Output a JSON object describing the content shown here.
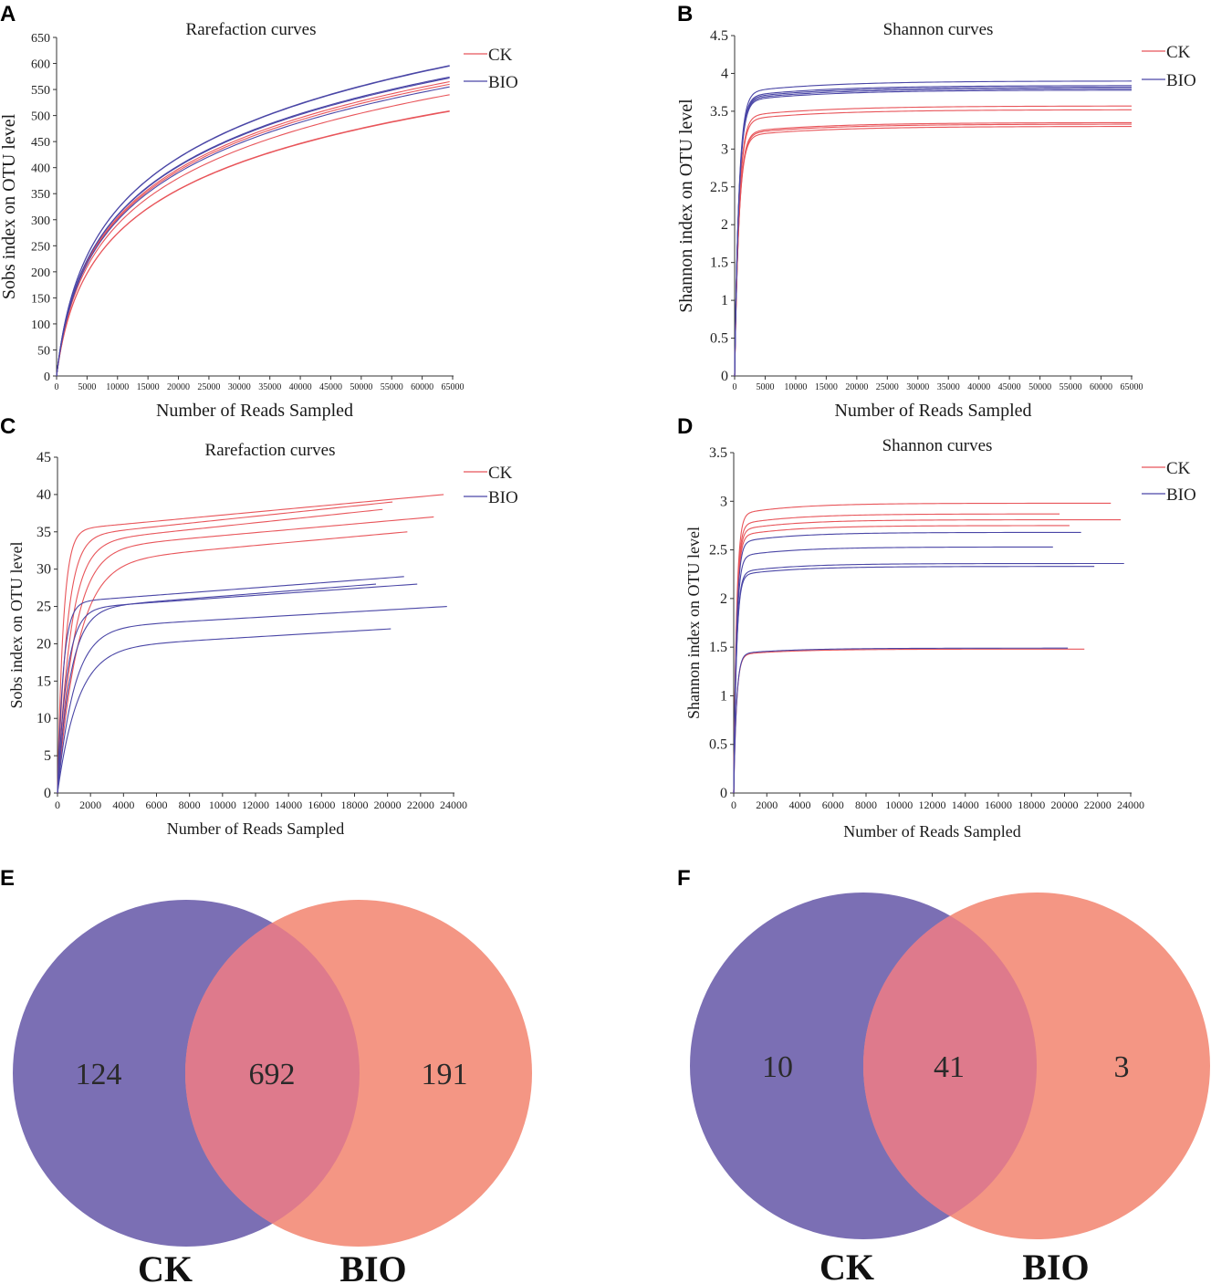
{
  "colors": {
    "ck": "#e8555a",
    "bio": "#4a46a6",
    "venn_ck": "#7b6fb4",
    "venn_bio": "#f49684",
    "venn_overlap": "#de7a8c"
  },
  "panels": {
    "A": {
      "letter": "A"
    },
    "B": {
      "letter": "B"
    },
    "C": {
      "letter": "C"
    },
    "D": {
      "letter": "D"
    },
    "E": {
      "letter": "E"
    },
    "F": {
      "letter": "F"
    }
  },
  "chart_data": [
    {
      "panel": "A",
      "type": "line",
      "title": "Rarefaction curves",
      "xlabel": "Number of Reads Sampled",
      "ylabel": "Sobs index on OTU level",
      "xlim": [
        0,
        65000
      ],
      "ylim": [
        0,
        650
      ],
      "xticks": [
        "0",
        "5000",
        "10000",
        "15000",
        "20000",
        "25000",
        "30000",
        "35000",
        "40000",
        "45000",
        "50000",
        "55000",
        "60000",
        "65000"
      ],
      "yticks": [
        "0",
        "50",
        "100",
        "150",
        "200",
        "250",
        "300",
        "350",
        "400",
        "450",
        "500",
        "550",
        "600",
        "650"
      ],
      "legend": [
        "CK",
        "BIO"
      ],
      "series": [
        {
          "name": "CK",
          "max_x": 64500,
          "final": 508
        },
        {
          "name": "CK",
          "max_x": 64500,
          "final": 509
        },
        {
          "name": "CK",
          "max_x": 64500,
          "final": 540
        },
        {
          "name": "CK",
          "max_x": 64500,
          "final": 560
        },
        {
          "name": "CK",
          "max_x": 64500,
          "final": 565
        },
        {
          "name": "BIO",
          "max_x": 64500,
          "final": 555
        },
        {
          "name": "BIO",
          "max_x": 64500,
          "final": 572
        },
        {
          "name": "BIO",
          "max_x": 64500,
          "final": 574
        },
        {
          "name": "BIO",
          "max_x": 64500,
          "final": 595
        },
        {
          "name": "BIO",
          "max_x": 64500,
          "final": 596
        }
      ]
    },
    {
      "panel": "B",
      "type": "line",
      "title": "Shannon curves",
      "xlabel": "Number of Reads Sampled",
      "ylabel": "Shannon index on OTU level",
      "xlim": [
        0,
        65000
      ],
      "ylim": [
        0,
        4.5
      ],
      "xticks": [
        "0",
        "5000",
        "10000",
        "15000",
        "20000",
        "25000",
        "30000",
        "35000",
        "40000",
        "45000",
        "50000",
        "55000",
        "60000",
        "65000"
      ],
      "yticks": [
        "0",
        "0.5",
        "1",
        "1.5",
        "2",
        "2.5",
        "3",
        "3.5",
        "4",
        "4.5"
      ],
      "legend": [
        "CK",
        "BIO"
      ],
      "series": [
        {
          "name": "CK",
          "max_x": 65000,
          "final": 3.3
        },
        {
          "name": "CK",
          "max_x": 65000,
          "final": 3.33
        },
        {
          "name": "CK",
          "max_x": 65000,
          "final": 3.35
        },
        {
          "name": "CK",
          "max_x": 65000,
          "final": 3.52
        },
        {
          "name": "CK",
          "max_x": 65000,
          "final": 3.57
        },
        {
          "name": "BIO",
          "max_x": 65000,
          "final": 3.78
        },
        {
          "name": "BIO",
          "max_x": 65000,
          "final": 3.8
        },
        {
          "name": "BIO",
          "max_x": 65000,
          "final": 3.82
        },
        {
          "name": "BIO",
          "max_x": 65000,
          "final": 3.84
        },
        {
          "name": "BIO",
          "max_x": 65000,
          "final": 3.9
        }
      ]
    },
    {
      "panel": "C",
      "type": "line",
      "title": "Rarefaction curves",
      "xlabel": "Number of Reads Sampled",
      "ylabel": "Sobs index on OTU level",
      "xlim": [
        0,
        24000
      ],
      "ylim": [
        0,
        45
      ],
      "xticks": [
        "0",
        "2000",
        "4000",
        "6000",
        "8000",
        "10000",
        "12000",
        "14000",
        "16000",
        "18000",
        "20000",
        "22000",
        "24000"
      ],
      "yticks": [
        "0",
        "5",
        "10",
        "15",
        "20",
        "25",
        "30",
        "35",
        "40",
        "45"
      ],
      "legend": [
        "CK",
        "BIO"
      ],
      "series": [
        {
          "name": "CK",
          "max_x": 23400,
          "final": 40
        },
        {
          "name": "CK",
          "max_x": 20300,
          "final": 39
        },
        {
          "name": "CK",
          "max_x": 19700,
          "final": 38
        },
        {
          "name": "CK",
          "max_x": 22800,
          "final": 37
        },
        {
          "name": "CK",
          "max_x": 21200,
          "final": 35
        },
        {
          "name": "BIO",
          "max_x": 21000,
          "final": 29
        },
        {
          "name": "BIO",
          "max_x": 21800,
          "final": 28
        },
        {
          "name": "BIO",
          "max_x": 19300,
          "final": 28
        },
        {
          "name": "BIO",
          "max_x": 23600,
          "final": 25
        },
        {
          "name": "BIO",
          "max_x": 20200,
          "final": 22
        }
      ]
    },
    {
      "panel": "D",
      "type": "line",
      "title": "Shannon curves",
      "xlabel": "Number of Reads Sampled",
      "ylabel": "Shannon index on OTU level",
      "xlim": [
        0,
        24000
      ],
      "ylim": [
        0,
        3.5
      ],
      "xticks": [
        "0",
        "2000",
        "4000",
        "6000",
        "8000",
        "10000",
        "12000",
        "14000",
        "16000",
        "18000",
        "20000",
        "22000",
        "24000"
      ],
      "yticks": [
        "0",
        "0.5",
        "1",
        "1.5",
        "2",
        "2.5",
        "3",
        "3.5"
      ],
      "legend": [
        "CK",
        "BIO"
      ],
      "series": [
        {
          "name": "CK",
          "max_x": 22800,
          "final": 2.98
        },
        {
          "name": "CK",
          "max_x": 19700,
          "final": 2.87
        },
        {
          "name": "CK",
          "max_x": 23400,
          "final": 2.81
        },
        {
          "name": "CK",
          "max_x": 20300,
          "final": 2.75
        },
        {
          "name": "CK",
          "max_x": 21200,
          "final": 1.48
        },
        {
          "name": "BIO",
          "max_x": 21000,
          "final": 2.68
        },
        {
          "name": "BIO",
          "max_x": 19300,
          "final": 2.53
        },
        {
          "name": "BIO",
          "max_x": 23600,
          "final": 2.36
        },
        {
          "name": "BIO",
          "max_x": 21800,
          "final": 2.33
        },
        {
          "name": "BIO",
          "max_x": 20200,
          "final": 1.49
        }
      ]
    },
    {
      "panel": "E",
      "type": "venn",
      "sets": [
        "CK",
        "BIO"
      ],
      "only_ck": "124",
      "shared": "692",
      "only_bio": "191"
    },
    {
      "panel": "F",
      "type": "venn",
      "sets": [
        "CK",
        "BIO"
      ],
      "only_ck": "10",
      "shared": "41",
      "only_bio": "3"
    }
  ]
}
